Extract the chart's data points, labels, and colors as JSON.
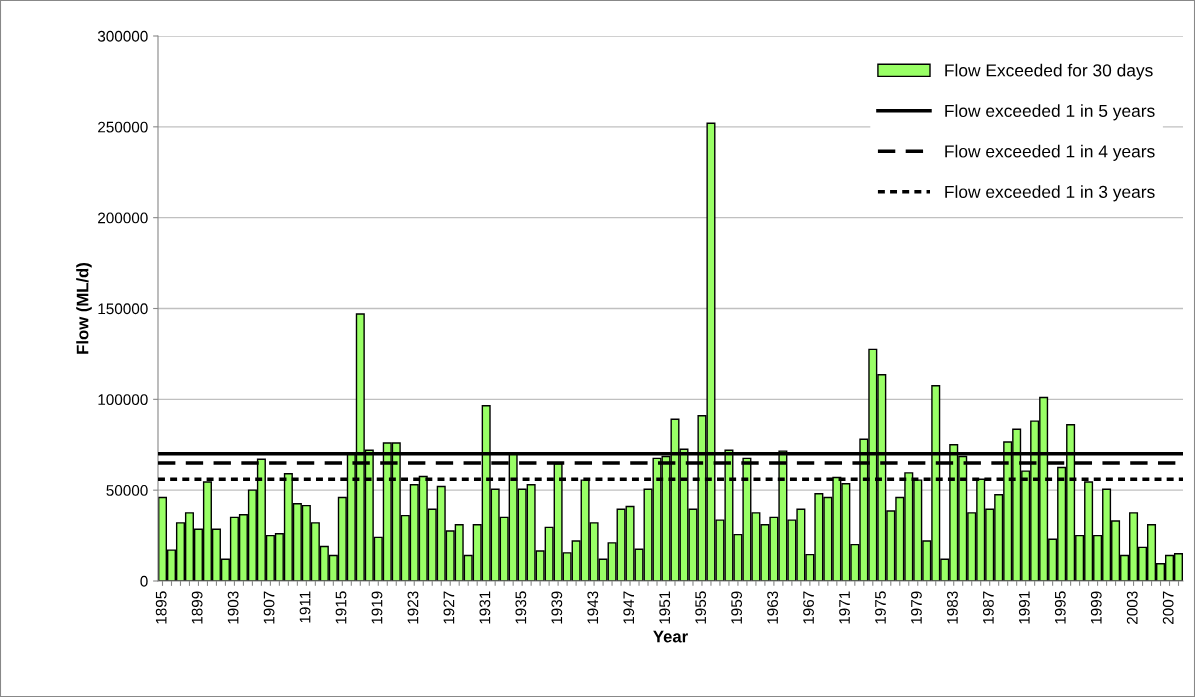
{
  "chart_data": {
    "type": "bar",
    "xlabel": "Year",
    "ylabel": "Flow (ML/d)",
    "categories": [
      "1895",
      null,
      null,
      null,
      "1899",
      null,
      null,
      null,
      "1903",
      null,
      null,
      null,
      "1907",
      null,
      null,
      null,
      "1911",
      null,
      null,
      null,
      "1915",
      null,
      null,
      null,
      "1919",
      null,
      null,
      null,
      "1923",
      null,
      null,
      null,
      "1927",
      null,
      null,
      null,
      "1931",
      null,
      null,
      null,
      "1935",
      null,
      null,
      null,
      "1939",
      null,
      null,
      null,
      "1943",
      null,
      null,
      null,
      "1947",
      null,
      null,
      null,
      "1951",
      null,
      null,
      null,
      "1955",
      null,
      null,
      null,
      "1959",
      null,
      null,
      null,
      "1963",
      null,
      null,
      null,
      "1967",
      null,
      null,
      null,
      "1971",
      null,
      null,
      null,
      "1975",
      null,
      null,
      null,
      "1979",
      null,
      null,
      null,
      "1983",
      null,
      null,
      null,
      "1987",
      null,
      null,
      null,
      "1991",
      null,
      null,
      null,
      "1995",
      null,
      null,
      null,
      "1999",
      null,
      null,
      null,
      "2003",
      null,
      null,
      null,
      "2007",
      null
    ],
    "series": [
      {
        "name": "Flow Exceeded for 30 days",
        "color": "#99ff66",
        "values": [
          46000,
          17000,
          32000,
          37500,
          28500,
          54500,
          28500,
          12000,
          35000,
          36500,
          50000,
          67000,
          25000,
          26000,
          59000,
          42500,
          41500,
          32000,
          19000,
          14000,
          46000,
          70000,
          147000,
          72000,
          24000,
          76000,
          76000,
          36000,
          53000,
          57500,
          39500,
          52000,
          27500,
          31000,
          14000,
          31000,
          96500,
          50500,
          35000,
          70000,
          50500,
          53000,
          16500,
          29500,
          64500,
          15500,
          22000,
          55500,
          32000,
          12000,
          21000,
          39500,
          41000,
          17500,
          50500,
          67500,
          68500,
          89000,
          72500,
          39500,
          91000,
          252000,
          33500,
          72000,
          25500,
          67500,
          37500,
          31000,
          35000,
          71500,
          33500,
          39500,
          14500,
          48000,
          46000,
          57000,
          53500,
          20000,
          78000,
          127500,
          113500,
          38500,
          46000,
          59500,
          55500,
          22000,
          107500,
          12000,
          75000,
          68500,
          37500,
          56000,
          39500,
          47500,
          76500,
          83500,
          60500,
          88000,
          101000,
          23000,
          62500,
          86000,
          25000,
          54500,
          25000,
          50500,
          33000,
          14000,
          37500,
          18500,
          31000,
          9500,
          14000,
          15000
        ]
      }
    ],
    "ref_lines": [
      {
        "axis": "y",
        "value": 70000,
        "label": "Flow exceeded 1 in 5 years",
        "color": "#000000",
        "line_style": "solid"
      },
      {
        "axis": "y",
        "value": 65000,
        "label": "Flow exceeded 1 in 4 years",
        "color": "#000000",
        "line_style": "dashed"
      },
      {
        "axis": "y",
        "value": 56000,
        "label": "Flow exceeded 1 in 3 years",
        "color": "#000000",
        "line_style": "dotted"
      }
    ],
    "ylim": [
      0,
      300000
    ],
    "yticks": [
      0,
      50000,
      100000,
      150000,
      200000,
      250000,
      300000
    ],
    "grid": "y",
    "legend": "top right"
  }
}
